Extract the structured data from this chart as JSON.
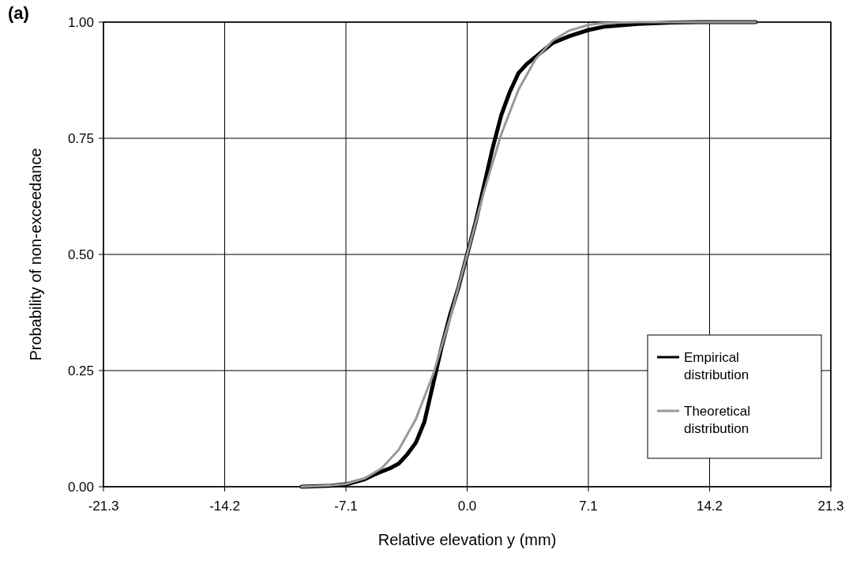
{
  "chart_data": {
    "type": "line",
    "title": "(a)",
    "xlabel": "Relative elevation y (mm)",
    "ylabel": "Probability of non-exceedance",
    "xlim": [
      -21.3,
      21.3
    ],
    "xticks": [
      -21.3,
      -14.2,
      -7.1,
      {
        "value": 0,
        "label": "0.0"
      },
      7.1,
      14.2,
      21.3
    ],
    "ylim": [
      0,
      1
    ],
    "yticks": [
      {
        "value": 0,
        "label": "0.00"
      },
      {
        "value": 0.25,
        "label": "0.25"
      },
      {
        "value": 0.5,
        "label": "0.50"
      },
      {
        "value": 0.75,
        "label": "0.75"
      },
      {
        "value": 1,
        "label": "1.00"
      }
    ],
    "grid": true,
    "legend": "bottom right",
    "marker": "none",
    "line_style": "solid",
    "series": [
      {
        "name": "Empirical distribution",
        "color": "#000000",
        "x": [
          -9.7,
          -8,
          -7,
          -6,
          -5.5,
          -5,
          -4.5,
          -4,
          -3.5,
          -3,
          -2.5,
          -2,
          -1.5,
          -1,
          -0.5,
          0,
          0.5,
          1,
          1.5,
          2,
          2.5,
          3,
          3.5,
          4,
          4.5,
          5,
          6,
          7.1,
          8,
          10,
          12,
          13.5,
          16.9
        ],
        "values": [
          0,
          0.002,
          0.006,
          0.016,
          0.025,
          0.033,
          0.04,
          0.05,
          0.07,
          0.095,
          0.14,
          0.22,
          0.3,
          0.37,
          0.43,
          0.5,
          0.57,
          0.65,
          0.73,
          0.8,
          0.85,
          0.89,
          0.91,
          0.925,
          0.94,
          0.955,
          0.97,
          0.983,
          0.99,
          0.996,
          0.999,
          1,
          1
        ]
      },
      {
        "name": "Theoretical distribution",
        "color": "#999999",
        "x": [
          -9.7,
          -8,
          -7.1,
          -6,
          -5,
          -4,
          -3,
          -2,
          -1,
          0,
          1,
          2,
          3,
          4,
          5,
          6,
          7.1,
          8,
          10,
          16.9
        ],
        "values": [
          0,
          0.003,
          0.006,
          0.018,
          0.04,
          0.08,
          0.146,
          0.241,
          0.363,
          0.5,
          0.637,
          0.759,
          0.854,
          0.92,
          0.96,
          0.982,
          0.994,
          0.998,
          1,
          1
        ]
      }
    ]
  }
}
